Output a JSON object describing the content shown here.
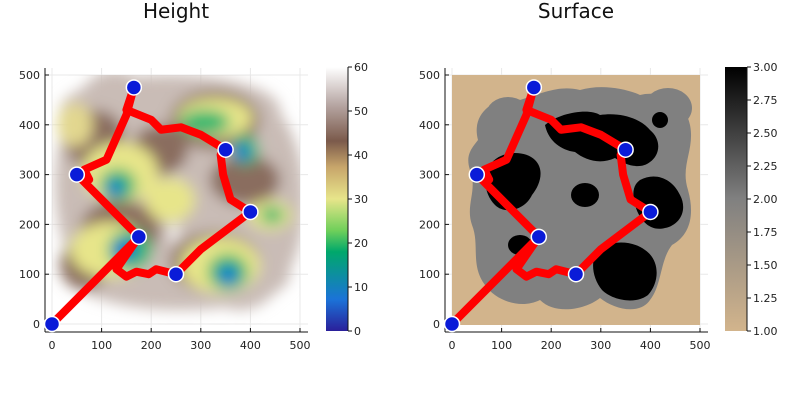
{
  "chart_data": [
    {
      "type": "heatmap",
      "title": "Height",
      "xlim": [
        0,
        500
      ],
      "ylim": [
        0,
        500
      ],
      "xticks": [
        "0",
        "100",
        "200",
        "300",
        "400",
        "500"
      ],
      "yticks": [
        "0",
        "100",
        "200",
        "300",
        "400",
        "500"
      ],
      "colorbar": {
        "range": [
          0,
          60
        ],
        "ticks": [
          "0",
          "10",
          "20",
          "30",
          "40",
          "50",
          "60"
        ],
        "colors": [
          "#2a1f9a",
          "#1b73d8",
          "#00a86b",
          "#6fcf5a",
          "#e7e58a",
          "#c8a66b",
          "#7b5a4b",
          "#b8a8a5",
          "#ffffff"
        ]
      },
      "markers": [
        [
          0,
          0
        ],
        [
          165,
          475
        ],
        [
          350,
          350
        ],
        [
          400,
          225
        ],
        [
          175,
          175
        ],
        [
          50,
          300
        ],
        [
          250,
          100
        ]
      ],
      "path": [
        [
          0,
          0
        ],
        [
          175,
          175
        ],
        [
          50,
          300
        ],
        [
          75,
          290
        ],
        [
          65,
          310
        ],
        [
          110,
          330
        ],
        [
          150,
          420
        ],
        [
          165,
          475
        ],
        [
          150,
          430
        ],
        [
          200,
          410
        ],
        [
          220,
          390
        ],
        [
          260,
          395
        ],
        [
          300,
          380
        ],
        [
          350,
          350
        ],
        [
          340,
          340
        ],
        [
          345,
          300
        ],
        [
          360,
          250
        ],
        [
          400,
          225
        ],
        [
          300,
          150
        ],
        [
          250,
          100
        ],
        [
          210,
          110
        ],
        [
          195,
          100
        ],
        [
          170,
          105
        ],
        [
          150,
          95
        ],
        [
          130,
          110
        ],
        [
          175,
          175
        ]
      ]
    },
    {
      "type": "heatmap",
      "title": "Surface",
      "xlim": [
        0,
        500
      ],
      "ylim": [
        0,
        500
      ],
      "xticks": [
        "0",
        "100",
        "200",
        "300",
        "400",
        "500"
      ],
      "yticks": [
        "0",
        "100",
        "200",
        "300",
        "400",
        "500"
      ],
      "colorbar": {
        "range": [
          1.0,
          3.0
        ],
        "ticks": [
          "1.00",
          "1.25",
          "1.50",
          "1.75",
          "2.00",
          "2.25",
          "2.50",
          "2.75",
          "3.00"
        ],
        "colors": [
          "#d2b48c",
          "#808080",
          "#000000"
        ]
      },
      "markers": [
        [
          0,
          0
        ],
        [
          165,
          475
        ],
        [
          350,
          350
        ],
        [
          400,
          225
        ],
        [
          175,
          175
        ],
        [
          50,
          300
        ],
        [
          250,
          100
        ]
      ],
      "path": [
        [
          0,
          0
        ],
        [
          175,
          175
        ],
        [
          50,
          300
        ],
        [
          75,
          290
        ],
        [
          65,
          310
        ],
        [
          110,
          330
        ],
        [
          150,
          420
        ],
        [
          165,
          475
        ],
        [
          150,
          430
        ],
        [
          200,
          410
        ],
        [
          220,
          390
        ],
        [
          260,
          395
        ],
        [
          300,
          380
        ],
        [
          350,
          350
        ],
        [
          340,
          340
        ],
        [
          345,
          300
        ],
        [
          360,
          250
        ],
        [
          400,
          225
        ],
        [
          300,
          150
        ],
        [
          250,
          100
        ],
        [
          210,
          110
        ],
        [
          195,
          100
        ],
        [
          170,
          105
        ],
        [
          150,
          95
        ],
        [
          130,
          110
        ],
        [
          175,
          175
        ]
      ]
    }
  ],
  "colors": {
    "path": "#ff0000",
    "marker_fill": "#0a1bd8",
    "marker_stroke": "#ffffff"
  }
}
